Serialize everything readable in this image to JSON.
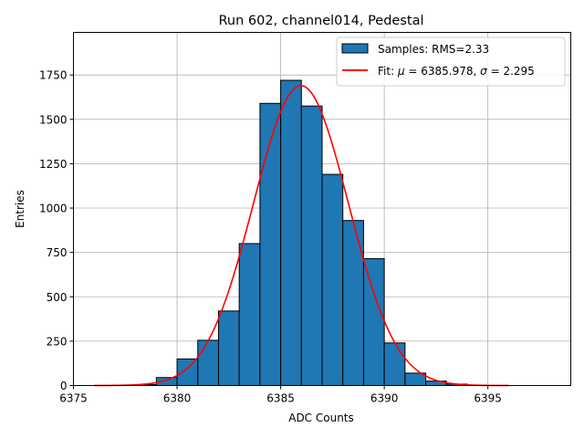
{
  "chart_data": {
    "type": "bar",
    "title": "Run 602, channel014, Pedestal",
    "xlabel": "ADC Counts",
    "ylabel": "Entries",
    "xlim": [
      6375,
      6399
    ],
    "ylim": [
      0,
      1990
    ],
    "xticks": [
      6375,
      6380,
      6385,
      6390,
      6395
    ],
    "yticks": [
      0,
      250,
      500,
      750,
      1000,
      1250,
      1500,
      1750
    ],
    "grid": true,
    "legend_location": "top-right",
    "histogram": {
      "name": "Samples: RMS=2.33",
      "color": "#1f77b4",
      "bins": [
        {
          "left": 6378,
          "right": 6379,
          "count": 5
        },
        {
          "left": 6379,
          "right": 6380,
          "count": 45
        },
        {
          "left": 6380,
          "right": 6381,
          "count": 150
        },
        {
          "left": 6381,
          "right": 6382,
          "count": 255
        },
        {
          "left": 6382,
          "right": 6383,
          "count": 420
        },
        {
          "left": 6383,
          "right": 6384,
          "count": 800
        },
        {
          "left": 6384,
          "right": 6385,
          "count": 1590
        },
        {
          "left": 6385,
          "right": 6386,
          "count": 1720
        },
        {
          "left": 6386,
          "right": 6387,
          "count": 1575
        },
        {
          "left": 6387,
          "right": 6388,
          "count": 1190
        },
        {
          "left": 6388,
          "right": 6389,
          "count": 930
        },
        {
          "left": 6389,
          "right": 6390,
          "count": 715
        },
        {
          "left": 6390,
          "right": 6391,
          "count": 240
        },
        {
          "left": 6391,
          "right": 6392,
          "count": 70
        },
        {
          "left": 6392,
          "right": 6393,
          "count": 25
        },
        {
          "left": 6393,
          "right": 6394,
          "count": 8
        }
      ]
    },
    "fit": {
      "name": "Fit: μ = 6385.978, σ = 2.295",
      "label_prefix": "Fit: ",
      "mu_symbol": "μ",
      "mu_text": " = 6385.978, ",
      "sigma_symbol": "σ",
      "sigma_text": " = 2.295",
      "color": "#ff0000",
      "mu": 6385.978,
      "sigma": 2.295,
      "amplitude": 1690,
      "x_range": [
        6376,
        6396
      ]
    }
  }
}
